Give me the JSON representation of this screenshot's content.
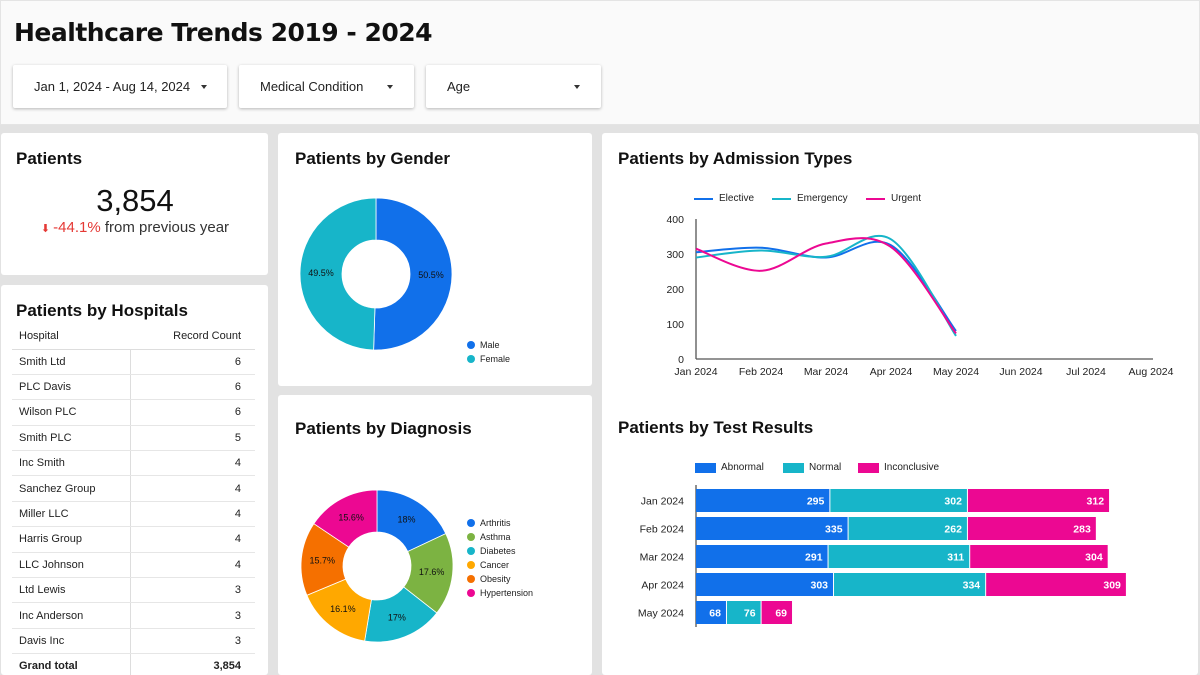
{
  "header": {
    "title": "Healthcare Trends 2019 - 2024",
    "filters": [
      {
        "label": "Jan 1, 2024 - Aug 14, 2024",
        "icon": "caret-down-icon"
      },
      {
        "label": "Medical Condition",
        "icon": "caret-down-icon"
      },
      {
        "label": "Age",
        "icon": "caret-down-icon"
      }
    ]
  },
  "scorecard": {
    "title": "Patients",
    "value": "3,854",
    "delta_icon": "arrow-down-icon",
    "delta_arrow": "⬇",
    "delta": "-44.1%",
    "delta_suffix": "from previous year",
    "delta_color": "#e53935"
  },
  "hospitals": {
    "title": "Patients by Hospitals",
    "columns": [
      "Hospital",
      "Record Count"
    ],
    "rows": [
      [
        "Smith Ltd",
        "6"
      ],
      [
        "PLC Davis",
        "6"
      ],
      [
        "Wilson PLC",
        "6"
      ],
      [
        "Smith PLC",
        "5"
      ],
      [
        "Inc Smith",
        "4"
      ],
      [
        "Sanchez Group",
        "4"
      ],
      [
        "Miller LLC",
        "4"
      ],
      [
        "Harris Group",
        "4"
      ],
      [
        "LLC Johnson",
        "4"
      ],
      [
        "Ltd Lewis",
        "3"
      ],
      [
        "Inc Anderson",
        "3"
      ],
      [
        "Davis Inc",
        "3"
      ]
    ],
    "total_label": "Grand total",
    "total_value": "3,854"
  },
  "chart_data": [
    {
      "id": "gender",
      "type": "pie",
      "donut": true,
      "title": "Patients by Gender",
      "categories": [
        "Male",
        "Female"
      ],
      "values": [
        50.5,
        49.5
      ],
      "labels": [
        "50.5%",
        "49.5%"
      ],
      "colors": [
        "#1170ea",
        "#17b5c9"
      ],
      "legend": "bottom-right"
    },
    {
      "id": "diagnosis",
      "type": "pie",
      "donut": true,
      "title": "Patients by Diagnosis",
      "categories": [
        "Arthritis",
        "Asthma",
        "Diabetes",
        "Cancer",
        "Obesity",
        "Hypertension"
      ],
      "values": [
        18,
        17.6,
        17,
        16.1,
        15.7,
        15.6
      ],
      "labels": [
        "18%",
        "17.6%",
        "17%",
        "16.1%",
        "15.7%",
        "15.6%"
      ],
      "colors": [
        "#1170ea",
        "#7cb342",
        "#17b5c9",
        "#ffa800",
        "#f57000",
        "#ec0892"
      ],
      "legend": "right"
    },
    {
      "id": "admission",
      "type": "line",
      "title": "Patients by Admission Types",
      "x": [
        "Jan 2024",
        "Feb 2024",
        "Mar 2024",
        "Apr 2024",
        "May 2024",
        "Jun 2024",
        "Jul 2024",
        "Aug 2024"
      ],
      "series": [
        {
          "name": "Elective",
          "color": "#1170ea",
          "values": [
            305,
            318,
            290,
            325,
            80
          ]
        },
        {
          "name": "Emergency",
          "color": "#17b5c9",
          "values": [
            290,
            310,
            292,
            342,
            66
          ]
        },
        {
          "name": "Urgent",
          "color": "#ec0892",
          "values": [
            315,
            252,
            330,
            320,
            73
          ]
        }
      ],
      "yticks": [
        0,
        100,
        200,
        300,
        400
      ],
      "ylim": [
        0,
        400
      ],
      "legend": "top-left",
      "grid": false
    },
    {
      "id": "test_results",
      "type": "bar",
      "orientation": "horizontal",
      "stacked": true,
      "title": "Patients by Test Results",
      "categories": [
        "Jan 2024",
        "Feb 2024",
        "Mar 2024",
        "Apr 2024",
        "May 2024"
      ],
      "series": [
        {
          "name": "Abnormal",
          "color": "#1170ea",
          "values": [
            295,
            335,
            291,
            303,
            68
          ]
        },
        {
          "name": "Normal",
          "color": "#17b5c9",
          "values": [
            302,
            262,
            311,
            334,
            76
          ]
        },
        {
          "name": "Inconclusive",
          "color": "#ec0892",
          "values": [
            312,
            283,
            304,
            309,
            69
          ]
        }
      ],
      "xlim": [
        0,
        1000
      ],
      "legend": "top-left",
      "data_labels": true
    }
  ]
}
